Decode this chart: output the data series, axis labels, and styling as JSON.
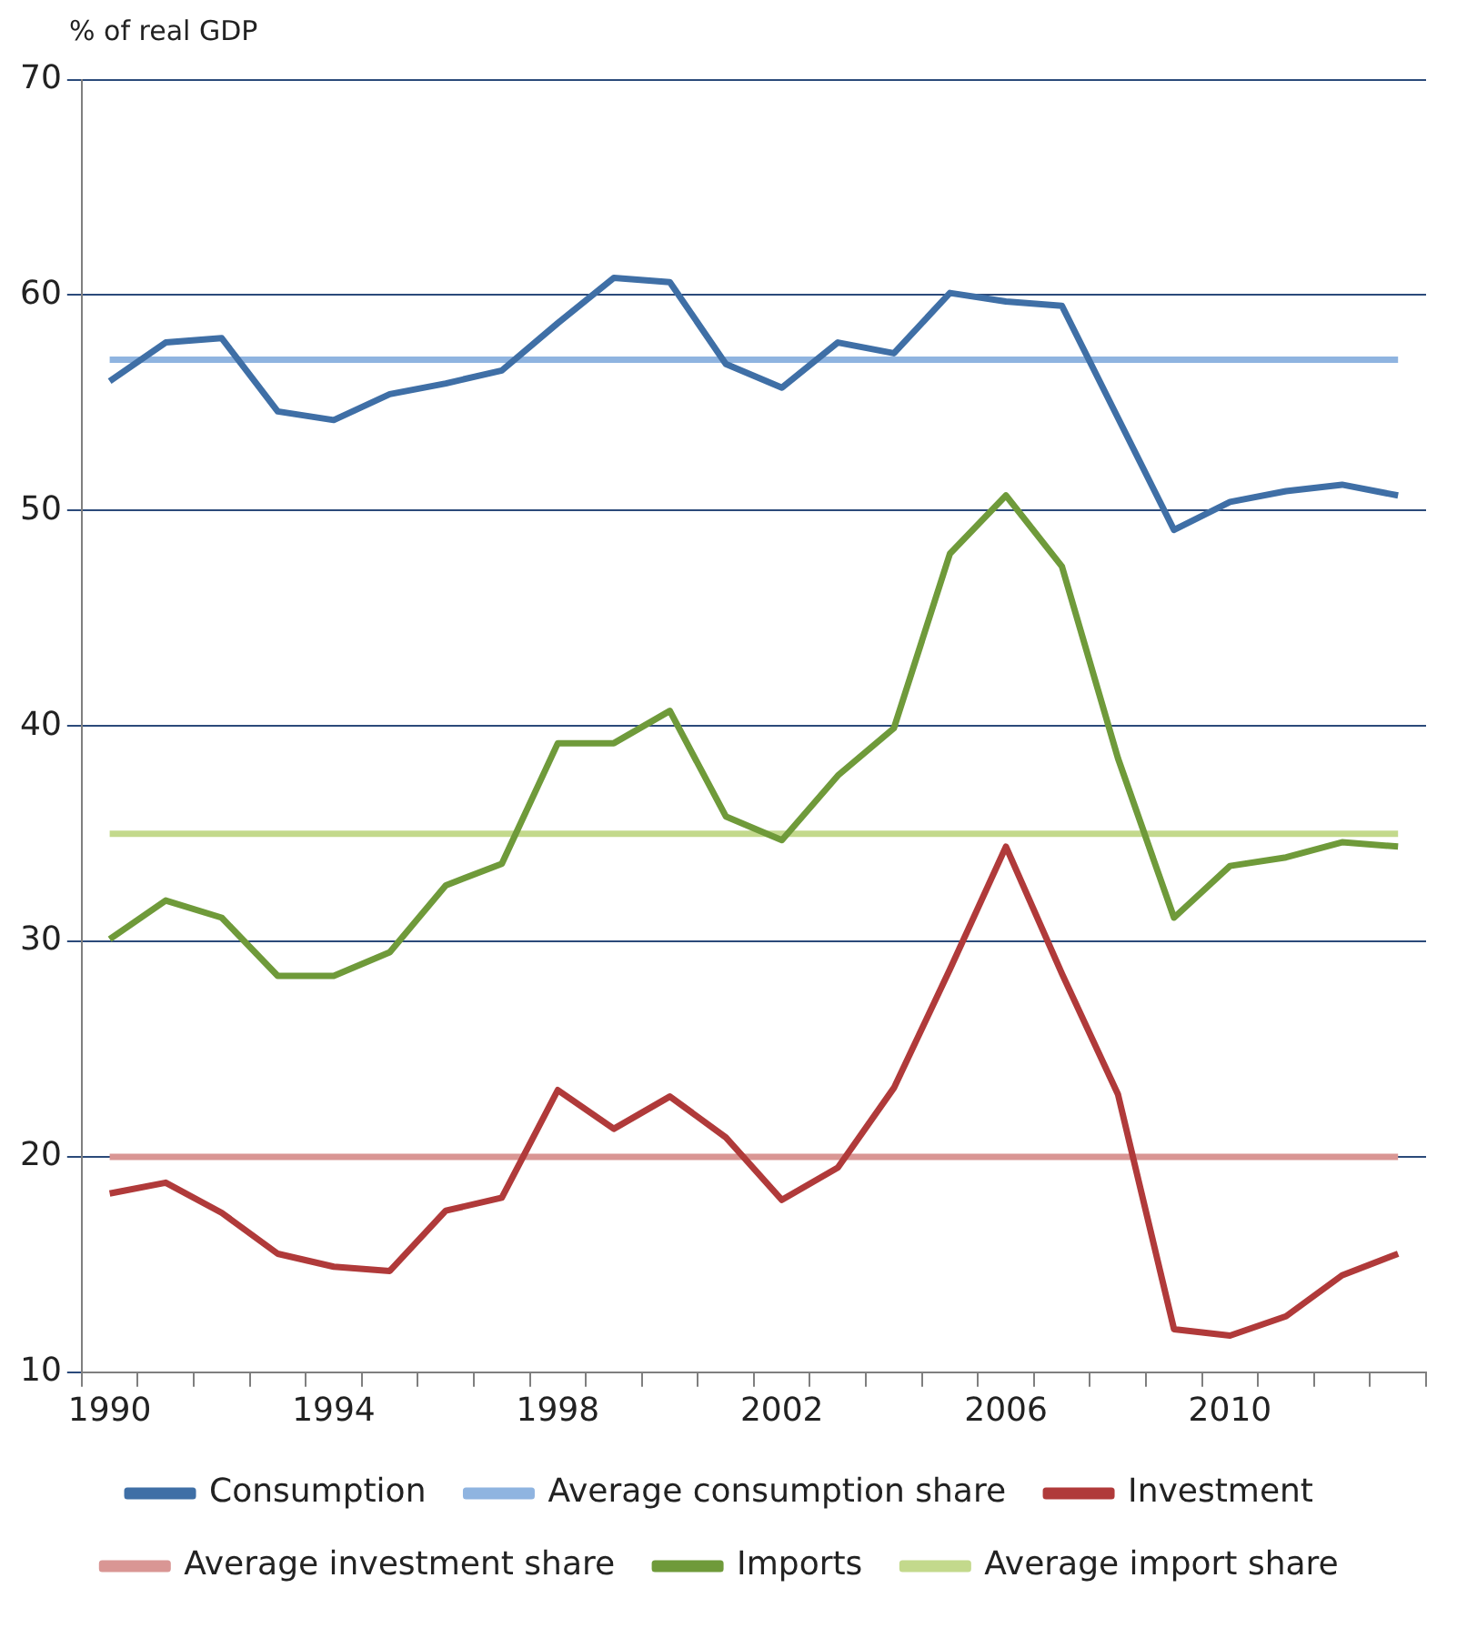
{
  "chart_data": {
    "type": "line",
    "ylabel": "% of real GDP",
    "categories": [
      "1990",
      null,
      null,
      null,
      "1994",
      null,
      null,
      null,
      "1998",
      null,
      null,
      null,
      "2002",
      null,
      null,
      null,
      "2006",
      null,
      null,
      null,
      "2010",
      null,
      null,
      null
    ],
    "series": [
      {
        "name": "Consumption",
        "color": "#3f6fa6",
        "values": [
          56.0,
          57.8,
          58.0,
          54.6,
          54.2,
          55.4,
          55.9,
          56.5,
          58.7,
          60.8,
          60.6,
          56.8,
          55.7,
          57.8,
          57.3,
          60.1,
          59.7,
          59.5,
          54.3,
          49.1,
          50.4,
          50.9,
          51.2,
          50.7
        ]
      },
      {
        "name": "Average consumption share",
        "color": "#8fb4e0",
        "values": [
          57,
          57,
          57,
          57,
          57,
          57,
          57,
          57,
          57,
          57,
          57,
          57,
          57,
          57,
          57,
          57,
          57,
          57,
          57,
          57,
          57,
          57,
          57,
          57
        ]
      },
      {
        "name": "Investment",
        "color": "#b03a3a",
        "values": [
          18.3,
          18.8,
          17.4,
          15.5,
          14.9,
          14.7,
          17.5,
          18.1,
          23.1,
          21.3,
          22.8,
          20.9,
          18.0,
          19.5,
          23.2,
          28.7,
          34.4,
          28.5,
          22.9,
          12.0,
          11.7,
          12.6,
          14.5,
          15.5
        ]
      },
      {
        "name": "Average investment share",
        "color": "#d99694",
        "values": [
          20,
          20,
          20,
          20,
          20,
          20,
          20,
          20,
          20,
          20,
          20,
          20,
          20,
          20,
          20,
          20,
          20,
          20,
          20,
          20,
          20,
          20,
          20,
          20
        ]
      },
      {
        "name": "Imports",
        "color": "#6f9a3a",
        "values": [
          30.1,
          31.9,
          31.1,
          28.4,
          28.4,
          29.5,
          32.6,
          33.6,
          39.2,
          39.2,
          40.7,
          35.8,
          34.7,
          37.7,
          39.9,
          48.0,
          50.7,
          47.4,
          38.5,
          31.1,
          33.5,
          33.9,
          34.6,
          34.4
        ]
      },
      {
        "name": "Average import share",
        "color": "#c3d98c",
        "values": [
          35,
          35,
          35,
          35,
          35,
          35,
          35,
          35,
          35,
          35,
          35,
          35,
          35,
          35,
          35,
          35,
          35,
          35,
          35,
          35,
          35,
          35,
          35,
          35
        ]
      }
    ],
    "ylim": [
      10,
      70
    ],
    "yticks": [
      10,
      20,
      30,
      40,
      50,
      60,
      70
    ],
    "grid": "y",
    "legend": "bottom",
    "marker": "none",
    "line_style": "solid"
  }
}
